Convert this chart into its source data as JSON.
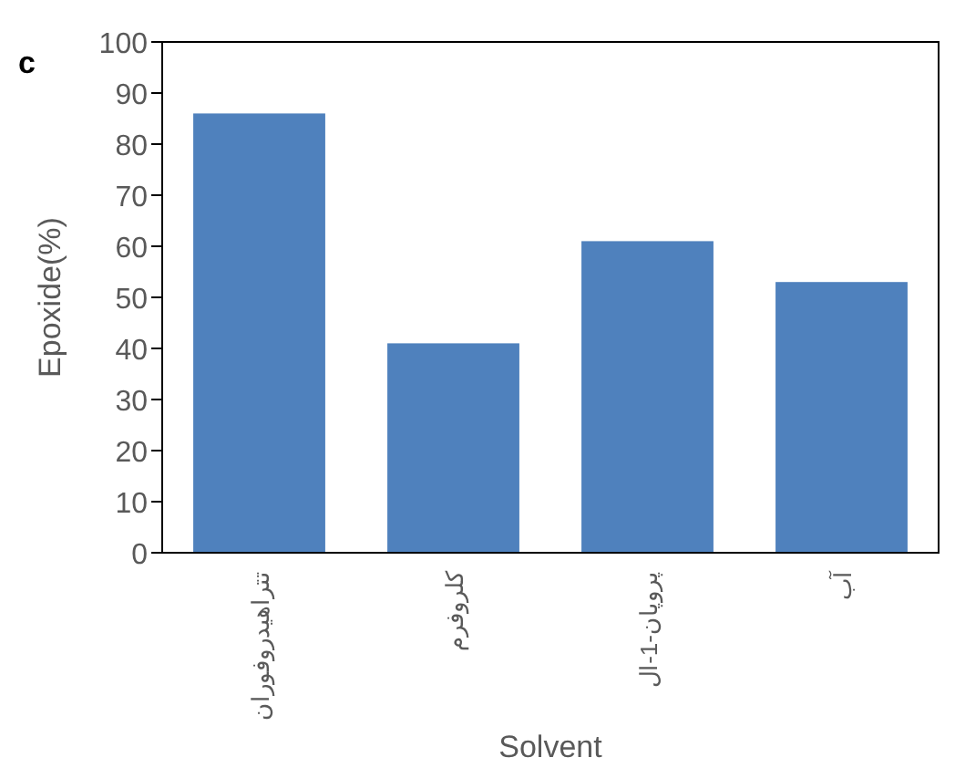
{
  "chart_data": {
    "type": "bar",
    "xlabel": "Solvent",
    "ylabel": "Epoxide(%)",
    "annotations": [
      "c"
    ],
    "categories": [
      "تتراهیدروفوران",
      "کلروفرم",
      "پروپان-1-ال",
      "آب"
    ],
    "values": [
      86,
      41,
      61,
      53
    ],
    "color": "#4f81bd",
    "ylim": [
      0,
      100
    ],
    "yticks": [
      0,
      10,
      20,
      30,
      40,
      50,
      60,
      70,
      80,
      90,
      100
    ]
  }
}
